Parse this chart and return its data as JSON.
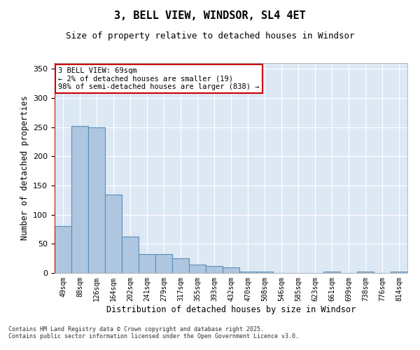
{
  "title": "3, BELL VIEW, WINDSOR, SL4 4ET",
  "subtitle": "Size of property relative to detached houses in Windsor",
  "xlabel": "Distribution of detached houses by size in Windsor",
  "ylabel": "Number of detached properties",
  "categories": [
    "49sqm",
    "88sqm",
    "126sqm",
    "164sqm",
    "202sqm",
    "241sqm",
    "279sqm",
    "317sqm",
    "355sqm",
    "393sqm",
    "432sqm",
    "470sqm",
    "508sqm",
    "546sqm",
    "585sqm",
    "623sqm",
    "661sqm",
    "699sqm",
    "738sqm",
    "776sqm",
    "814sqm"
  ],
  "values": [
    80,
    252,
    250,
    135,
    62,
    32,
    32,
    25,
    14,
    12,
    10,
    3,
    3,
    0,
    0,
    0,
    3,
    0,
    3,
    0,
    2
  ],
  "bar_color": "#aec6e0",
  "bar_edge_color": "#5b8db8",
  "annotation_box_text": "3 BELL VIEW: 69sqm\n← 2% of detached houses are smaller (19)\n98% of semi-detached houses are larger (838) →",
  "annotation_box_color": "#ffffff",
  "annotation_box_edge_color": "#cc0000",
  "vline_color": "#cc0000",
  "ylim": [
    0,
    360
  ],
  "yticks": [
    0,
    50,
    100,
    150,
    200,
    250,
    300,
    350
  ],
  "background_color": "#dde8f5",
  "grid_color": "#ffffff",
  "fig_background_color": "#ffffff",
  "footer_line1": "Contains HM Land Registry data © Crown copyright and database right 2025.",
  "footer_line2": "Contains public sector information licensed under the Open Government Licence v3.0."
}
